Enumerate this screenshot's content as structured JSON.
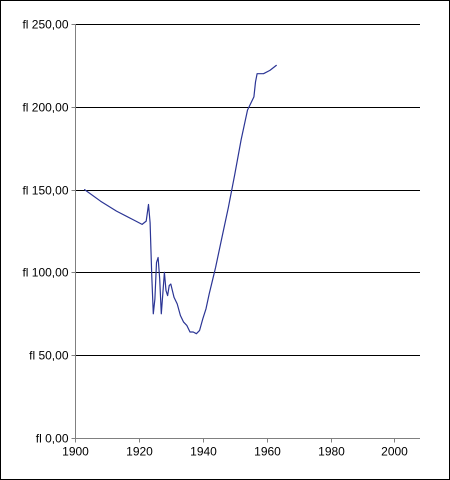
{
  "chart_data": {
    "type": "line",
    "title": "",
    "xlabel": "",
    "ylabel": "",
    "xlim": [
      1900,
      2008
    ],
    "ylim": [
      0,
      250
    ],
    "x_ticks": [
      1900,
      1920,
      1940,
      1960,
      1980,
      2000
    ],
    "x_tick_labels": [
      "1900",
      "1920",
      "1940",
      "1960",
      "1980",
      "2000"
    ],
    "y_ticks": [
      0,
      50,
      100,
      150,
      200,
      250
    ],
    "y_tick_labels": [
      "fl 0,00",
      "fl 50,00",
      "fl 100,00",
      "fl 150,00",
      "fl 200,00",
      "fl 250,00"
    ],
    "grid": "horizontal",
    "legend": "none",
    "colors": {
      "line": "#2b3595",
      "grid": "#000000",
      "axis": "#808080",
      "frame": "#000000"
    },
    "series": [
      {
        "name": "",
        "x": [
          1903,
          1908,
          1913,
          1918,
          1921,
          1922.3,
          1923,
          1923.5,
          1924,
          1924.5,
          1925,
          1925.5,
          1926,
          1926.5,
          1927,
          1927.5,
          1928,
          1928.5,
          1929,
          1929.5,
          1930,
          1930.5,
          1931,
          1932,
          1933,
          1934,
          1935,
          1936,
          1937,
          1938,
          1939,
          1940,
          1941,
          1942,
          1943,
          1944,
          1946,
          1948,
          1950,
          1952,
          1954,
          1956,
          1956.5,
          1957,
          1958,
          1959,
          1961,
          1963
        ],
        "y": [
          150,
          143,
          137,
          132,
          129,
          131,
          141,
          130,
          99,
          75,
          84,
          106,
          109,
          96,
          75,
          87,
          100,
          89,
          86,
          92,
          93,
          89,
          85,
          81,
          74,
          70,
          68,
          64,
          64,
          63,
          65,
          72,
          78,
          87,
          95,
          103,
          121,
          139,
          159,
          180,
          198,
          206,
          215,
          220,
          220,
          220,
          222,
          225
        ]
      }
    ]
  }
}
